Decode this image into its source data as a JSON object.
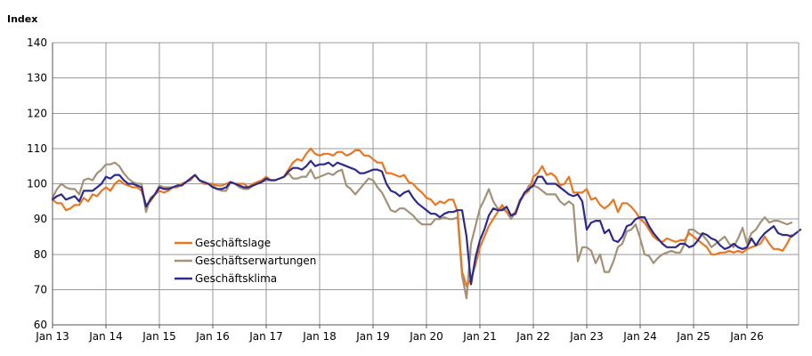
{
  "chart_data": {
    "type": "line",
    "title": "",
    "xlabel": "",
    "ylabel": "Index",
    "ylim": [
      60,
      140
    ],
    "y_ticks": [
      60,
      70,
      80,
      90,
      100,
      110,
      120,
      130,
      140
    ],
    "x_ticks": [
      "Jan 13",
      "Jan 14",
      "Jan 15",
      "Jan 16",
      "Jan 17",
      "Jan 18",
      "Jan 19",
      "Jan 20",
      "Jan 21",
      "Jan 22",
      "Jan 23",
      "Jan 24",
      "Jan 25",
      "Jan 26"
    ],
    "x_start": "2013-01",
    "grid": true,
    "legend_position": "center-left",
    "colors": {
      "Geschäftslage": "#E87722",
      "Geschäftserwartungen": "#A39178",
      "Geschäftsklima": "#2E2A8C",
      "grid": "#999999",
      "axis": "#555555"
    },
    "series": [
      {
        "name": "Geschäftslage",
        "values": [
          95.5,
          94.5,
          94.5,
          92.5,
          93,
          94,
          94,
          96,
          95,
          97,
          96.5,
          98,
          99,
          98,
          100,
          101,
          100,
          99.5,
          99,
          99,
          98,
          94,
          95,
          97,
          98,
          97.5,
          98,
          99,
          99,
          100,
          100.5,
          101,
          102.5,
          101,
          100,
          100,
          100,
          99.5,
          99.5,
          100,
          100.5,
          100,
          100,
          100,
          99,
          100,
          100.5,
          101,
          102,
          101,
          101,
          101.5,
          102,
          104,
          106,
          107,
          106.5,
          108.5,
          110,
          108.5,
          108,
          108.5,
          108.5,
          108,
          109,
          109,
          108,
          108.5,
          109.5,
          109.5,
          108,
          108,
          107,
          106,
          106,
          103,
          103,
          102.5,
          102,
          102.5,
          100.5,
          100,
          98.5,
          97.5,
          96,
          95.5,
          94,
          95,
          94.5,
          95.5,
          95.5,
          92,
          75,
          71,
          73,
          77,
          82,
          85,
          88,
          90,
          92,
          94,
          92,
          91,
          92,
          95,
          97,
          98,
          102,
          103,
          105,
          102.5,
          103,
          102,
          99.5,
          100,
          102,
          97.5,
          97.5,
          97.5,
          98.5,
          95.5,
          96,
          94,
          93,
          94,
          95.5,
          92,
          94.5,
          94.5,
          93.5,
          92,
          90,
          89,
          87,
          85,
          84,
          83.5,
          84.5,
          84,
          83.5,
          84,
          84,
          86,
          85,
          84,
          83,
          82,
          80,
          80,
          80.5,
          80.5,
          81,
          80.5,
          81,
          80.5,
          81.5,
          82,
          82.5,
          83,
          85,
          83,
          81.5,
          81.5,
          81,
          83,
          85.5
        ]
      },
      {
        "name": "Geschäftserwartungen",
        "values": [
          96,
          98.5,
          100,
          99,
          98.5,
          98.5,
          97,
          101,
          101.5,
          101,
          103,
          104,
          105.5,
          105.5,
          106,
          105,
          103,
          101.5,
          100.5,
          100,
          100,
          92,
          96,
          97,
          99.5,
          99,
          99,
          99,
          99.5,
          100,
          100.5,
          101.5,
          102.5,
          101,
          100,
          100,
          99.5,
          98.5,
          98,
          98,
          100.5,
          100,
          99,
          98.5,
          98.5,
          99.5,
          100,
          100.5,
          101,
          101,
          101,
          101.5,
          102,
          103,
          101.5,
          101.5,
          102,
          102,
          104,
          101.5,
          102,
          102.5,
          103,
          102.5,
          103.5,
          104,
          99.5,
          98.5,
          97,
          98.5,
          100,
          101.5,
          101,
          99,
          97.5,
          95,
          92.5,
          92,
          93,
          93,
          92,
          91,
          89.5,
          88.5,
          88.5,
          88.5,
          90,
          90,
          90.5,
          90,
          90,
          90.5,
          74,
          67.5,
          83,
          88,
          93,
          95.5,
          98.5,
          95,
          93,
          93,
          92,
          90,
          92,
          95.5,
          97,
          99.5,
          99.5,
          99,
          98,
          97,
          97,
          97,
          95,
          94,
          95,
          94,
          78,
          82,
          82,
          81,
          77.5,
          80,
          75,
          75,
          78,
          82,
          83,
          86.5,
          87,
          88.5,
          84.5,
          80,
          79.5,
          77.5,
          79,
          80,
          80.5,
          81,
          80.5,
          80.5,
          83,
          87,
          87,
          86,
          85.5,
          84,
          82,
          83,
          84,
          85,
          83,
          82,
          84.5,
          87.5,
          83,
          86,
          87,
          89,
          90.5,
          89,
          89.5,
          89.5,
          89,
          88.5,
          89
        ]
      },
      {
        "name": "Geschäftsklima",
        "values": [
          95.5,
          96.5,
          97,
          95.5,
          96,
          96.5,
          95,
          98,
          98,
          98,
          99,
          100,
          102,
          101.5,
          102.5,
          102.5,
          101,
          100,
          100,
          99.5,
          99,
          93.5,
          95.5,
          97,
          99,
          98.5,
          98.5,
          99,
          99.5,
          99.5,
          100.5,
          101.5,
          102.5,
          101,
          100.5,
          100,
          99,
          98.5,
          98.5,
          99,
          100.5,
          100,
          99.5,
          99,
          99,
          99.5,
          100,
          100.5,
          101.5,
          101,
          101,
          101.5,
          102,
          103.5,
          104.5,
          104.5,
          104,
          105,
          106.5,
          105,
          105.5,
          105.5,
          106,
          105,
          106,
          105.5,
          105,
          104.5,
          104,
          103,
          103,
          103.5,
          104,
          104,
          103.5,
          100,
          98,
          97.5,
          96.5,
          97.5,
          98,
          96,
          94.5,
          93.5,
          92.5,
          91.5,
          91.5,
          90.5,
          91.5,
          92,
          92,
          92.5,
          92.5,
          85,
          71.5,
          79,
          84,
          87,
          91,
          93,
          92.5,
          92.5,
          93.5,
          91,
          91.5,
          95,
          97.5,
          98.5,
          99.5,
          102,
          102,
          100,
          100,
          100,
          99,
          98,
          97,
          96.5,
          97,
          95,
          87,
          89,
          89.5,
          89.5,
          86,
          87,
          84,
          83.5,
          85,
          88,
          88.5,
          90,
          90.5,
          90.5,
          88,
          86,
          84.5,
          83,
          82,
          82,
          82,
          83,
          83,
          82,
          82.5,
          84,
          86,
          85.5,
          84.5,
          84,
          82.5,
          81.5,
          82,
          83,
          82,
          81.5,
          82,
          84.5,
          82.5,
          84.5,
          86,
          87,
          88,
          86,
          85.5,
          85.5,
          85,
          86,
          87
        ]
      }
    ]
  }
}
